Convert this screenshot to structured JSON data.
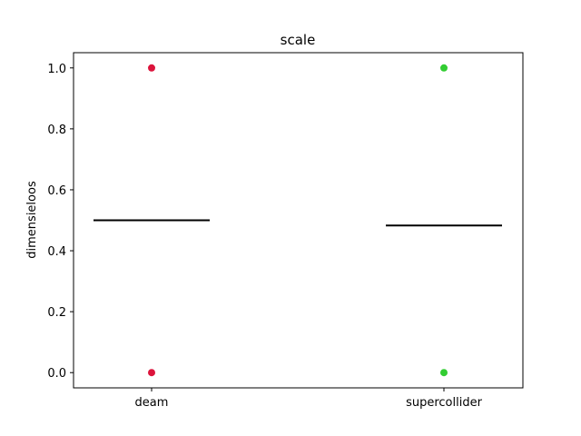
{
  "chart_data": {
    "type": "scatter",
    "title": "scale",
    "xlabel": "",
    "ylabel": "dimensieloos",
    "categories": [
      "deam",
      "supercollider"
    ],
    "ylim": [
      -0.05,
      1.05
    ],
    "yticks": [
      0.0,
      0.2,
      0.4,
      0.6,
      0.8,
      1.0
    ],
    "ytick_labels": [
      "0.0",
      "0.2",
      "0.4",
      "0.6",
      "0.8",
      "1.0"
    ],
    "grid": false,
    "series": [
      {
        "category": "deam",
        "points": [
          0.0,
          1.0
        ],
        "mean": 0.5,
        "color": "#dc143c"
      },
      {
        "category": "supercollider",
        "points": [
          0.0,
          1.0
        ],
        "mean": 0.483,
        "color": "#32cd32"
      }
    ]
  }
}
